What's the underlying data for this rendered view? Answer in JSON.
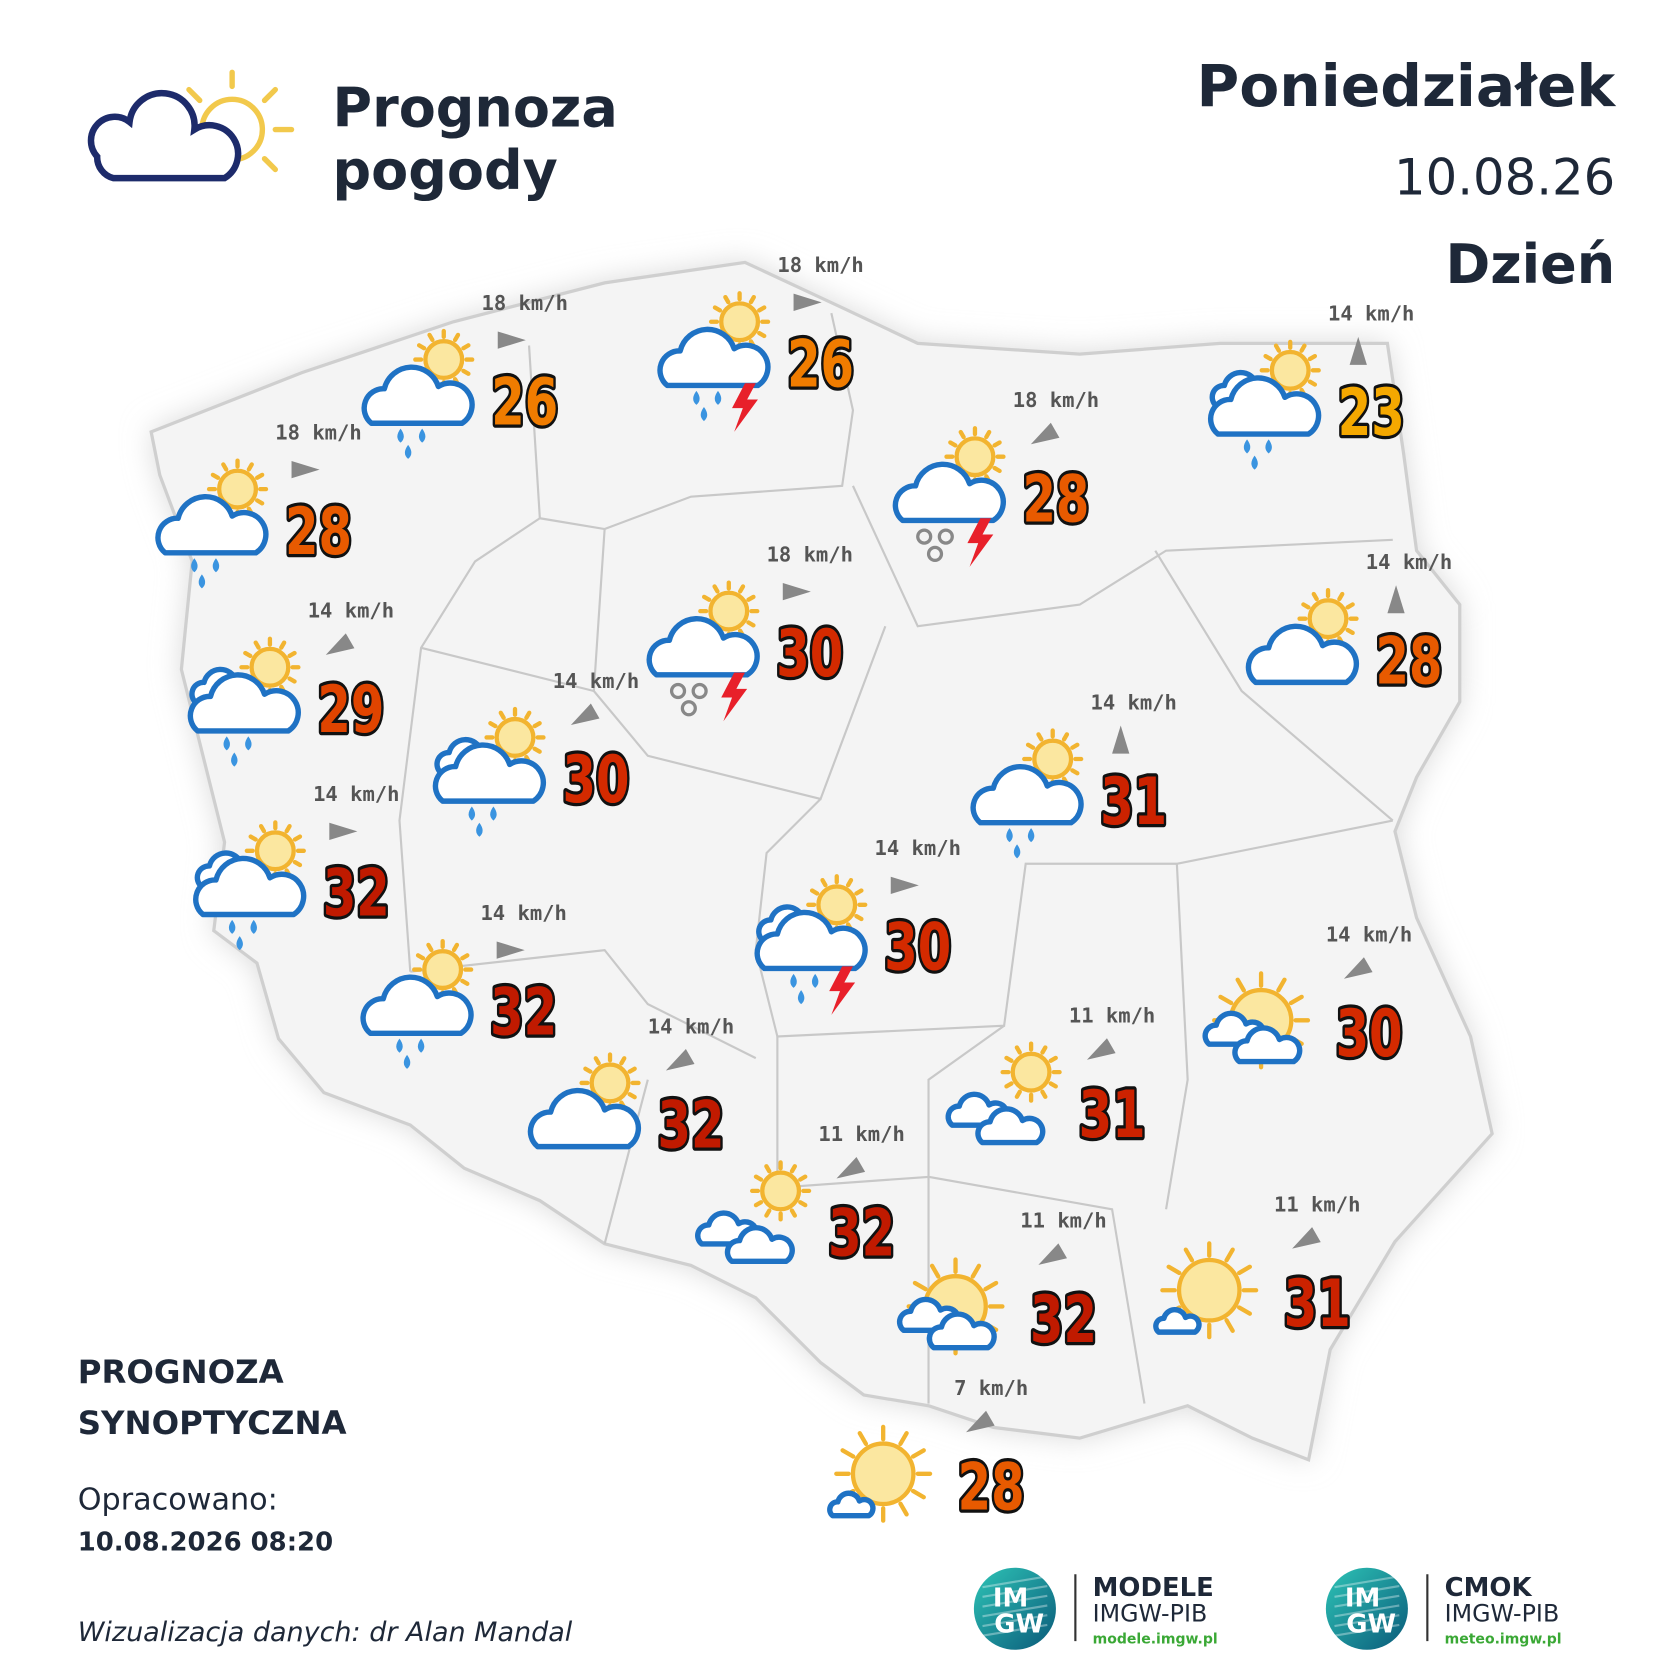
{
  "header": {
    "title": [
      "Prognoza",
      "pogody"
    ],
    "day": "Poniedziałek",
    "date": "10.08.26",
    "period": "Dzień"
  },
  "stations": [
    {
      "icon": [
        "sun",
        "cloud",
        "rain"
      ],
      "wind": "18 km/h",
      "arrow": "east",
      "temp": 26,
      "color": "#f07c00"
    },
    {
      "icon": [
        "sun",
        "cloud",
        "rain",
        "storm"
      ],
      "wind": "18 km/h",
      "arrow": "east",
      "temp": 26,
      "color": "#f07c00"
    },
    {
      "icon": [
        "sun",
        "back-cloud",
        "cloud",
        "rain"
      ],
      "wind": "14 km/h",
      "arrow": "north",
      "temp": 23,
      "color": "#f5a800"
    },
    {
      "icon": [
        "sun",
        "cloud",
        "rain"
      ],
      "wind": "18 km/h",
      "arrow": "east",
      "temp": 28,
      "color": "#e85a00"
    },
    {
      "icon": [
        "sun",
        "cloud",
        "hail",
        "storm"
      ],
      "wind": "18 km/h",
      "arrow": "southwest",
      "temp": 28,
      "color": "#e85a00"
    },
    {
      "icon": [
        "sun",
        "cloud",
        "hail",
        "storm"
      ],
      "wind": "18 km/h",
      "arrow": "east",
      "temp": 30,
      "color": "#d42a00"
    },
    {
      "icon": [
        "sun",
        "cloud"
      ],
      "wind": "14 km/h",
      "arrow": "north",
      "temp": 28,
      "color": "#e85a00"
    },
    {
      "icon": [
        "sun",
        "back-cloud",
        "cloud",
        "rain"
      ],
      "wind": "14 km/h",
      "arrow": "southwest",
      "temp": 29,
      "color": "#e04400"
    },
    {
      "icon": [
        "sun",
        "back-cloud",
        "cloud",
        "rain"
      ],
      "wind": "14 km/h",
      "arrow": "southwest",
      "temp": 30,
      "color": "#d42a00"
    },
    {
      "icon": [
        "sun",
        "cloud",
        "rain"
      ],
      "wind": "14 km/h",
      "arrow": "north",
      "temp": 31,
      "color": "#cc2200"
    },
    {
      "icon": [
        "sun",
        "back-cloud",
        "cloud",
        "rain"
      ],
      "wind": "14 km/h",
      "arrow": "east",
      "temp": 32,
      "color": "#c01a00"
    },
    {
      "icon": [
        "sun",
        "back-cloud",
        "cloud",
        "rain",
        "storm"
      ],
      "wind": "14 km/h",
      "arrow": "east",
      "temp": 30,
      "color": "#d42a00"
    },
    {
      "icon": [
        "sun",
        "cloud",
        "rain"
      ],
      "wind": "14 km/h",
      "arrow": "east",
      "temp": 32,
      "color": "#c01a00"
    },
    {
      "icon": [
        "big-sun",
        "small-clouds"
      ],
      "wind": "14 km/h",
      "arrow": "southwest",
      "temp": 30,
      "color": "#d42a00"
    },
    {
      "icon": [
        "sun",
        "cloud"
      ],
      "wind": "14 km/h",
      "arrow": "southwest",
      "temp": 32,
      "color": "#c01a00"
    },
    {
      "icon": [
        "sun",
        "small-clouds"
      ],
      "wind": "11 km/h",
      "arrow": "southwest",
      "temp": 31,
      "color": "#cc2200"
    },
    {
      "icon": [
        "sun",
        "small-clouds"
      ],
      "wind": "11 km/h",
      "arrow": "southwest",
      "temp": 32,
      "color": "#c01a00"
    },
    {
      "icon": [
        "big-sun",
        "small-clouds"
      ],
      "wind": "11 km/h",
      "arrow": "southwest",
      "temp": 32,
      "color": "#c01a00"
    },
    {
      "icon": [
        "big-sun",
        "small-cloud"
      ],
      "wind": "11 km/h",
      "arrow": "southwest",
      "temp": 31,
      "color": "#cc2200"
    },
    {
      "icon": [
        "big-sun",
        "small-cloud"
      ],
      "wind": "7 km/h",
      "arrow": "southwest",
      "temp": 28,
      "color": "#e85a00"
    }
  ],
  "footer": {
    "kind": [
      "PROGNOZA",
      "SYNOPTYCZNA"
    ],
    "prepared_label": "Opracowano:",
    "prepared": "10.08.2026 08:20",
    "credit": "Wizualizacja danych: dr Alan Mandal"
  },
  "logos": [
    {
      "badge": [
        "IM",
        "GW"
      ],
      "name": "MODELE",
      "org": "IMGW-PIB",
      "url": "modele.imgw.pl"
    },
    {
      "badge": [
        "IM",
        "GW"
      ],
      "name": "CMOK",
      "org": "IMGW-PIB",
      "url": "meteo.imgw.pl"
    }
  ]
}
